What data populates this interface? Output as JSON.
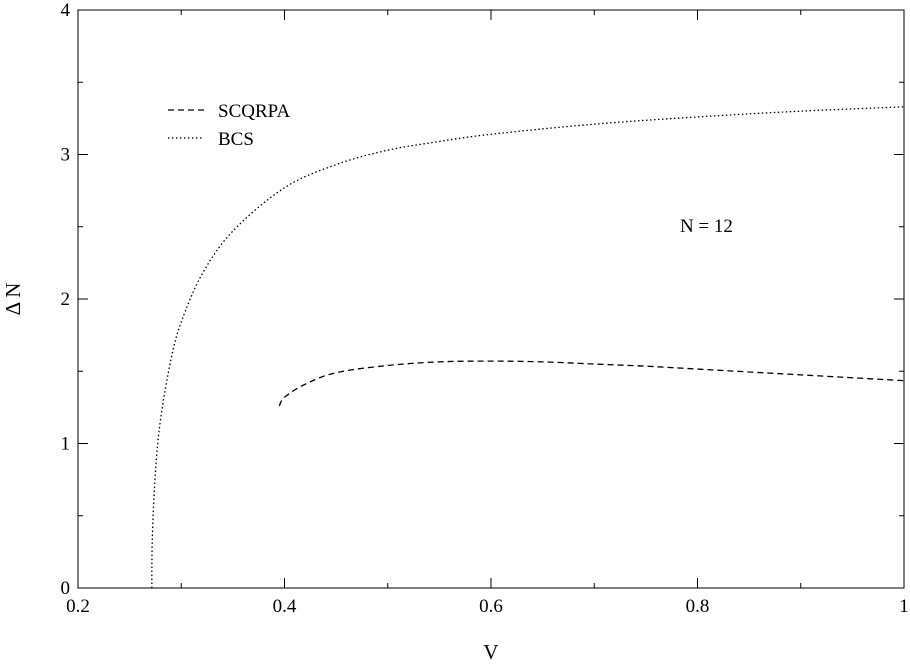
{
  "chart_data": {
    "type": "line",
    "title": "",
    "xlabel": "V",
    "ylabel": "Δ N",
    "xlim": [
      0.2,
      1.0
    ],
    "ylim": [
      0,
      4
    ],
    "xticks": [
      "0.2",
      "0.4",
      "0.6",
      "0.8",
      "1"
    ],
    "yticks": [
      "0",
      "1",
      "2",
      "3",
      "4"
    ],
    "grid": false,
    "legend_position": "top-left",
    "annotation": "N = 12",
    "series": [
      {
        "name": "SCQRPA",
        "style": "dashed",
        "color": "#000000",
        "x": [
          0.395,
          0.4,
          0.42,
          0.45,
          0.5,
          0.55,
          0.6,
          0.65,
          0.7,
          0.75,
          0.8,
          0.85,
          0.9,
          0.95,
          1.0
        ],
        "y": [
          1.26,
          1.32,
          1.41,
          1.49,
          1.54,
          1.565,
          1.57,
          1.565,
          1.55,
          1.535,
          1.515,
          1.495,
          1.475,
          1.455,
          1.435
        ]
      },
      {
        "name": "BCS",
        "style": "dotted",
        "color": "#000000",
        "x": [
          0.2715,
          0.272,
          0.275,
          0.28,
          0.29,
          0.3,
          0.32,
          0.35,
          0.4,
          0.45,
          0.5,
          0.55,
          0.6,
          0.7,
          0.8,
          0.9,
          1.0
        ],
        "y": [
          0.0,
          0.35,
          0.8,
          1.17,
          1.58,
          1.84,
          2.17,
          2.47,
          2.77,
          2.93,
          3.03,
          3.09,
          3.14,
          3.21,
          3.26,
          3.3,
          3.33
        ]
      }
    ]
  }
}
